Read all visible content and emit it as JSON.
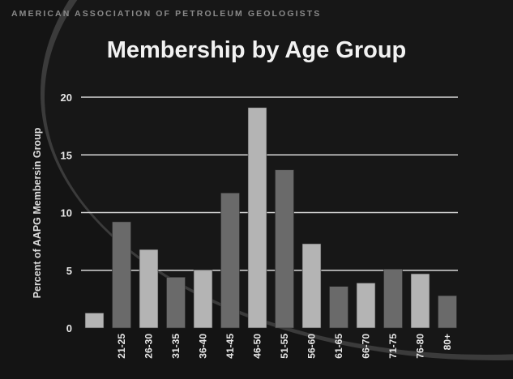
{
  "header": {
    "org": "AMERICAN ASSOCIATION OF PETROLEUM GEOLOGISTS"
  },
  "colors": {
    "background": "#151515",
    "arc": "#3a3a3a",
    "bar_dark": "#6a6a6a",
    "bar_light": "#b4b4b4",
    "grid": "#d8d8d8",
    "text": "#e6e6e6"
  },
  "chart_data": {
    "type": "bar",
    "title": "Membership by Age Group",
    "xlabel": "",
    "ylabel": "Percent of AAPG Membersin Group",
    "ylim": [
      0,
      20
    ],
    "yticks": [
      0,
      5,
      10,
      15,
      20
    ],
    "grid": true,
    "categories": [
      "",
      "21-25",
      "26-30",
      "31-35",
      "36-40",
      "41-45",
      "46-50",
      "51-55",
      "56-60",
      "61-65",
      "66-70",
      "71-75",
      "76-80",
      "80+"
    ],
    "values": [
      1.3,
      9.2,
      6.8,
      4.4,
      5.0,
      11.7,
      19.1,
      13.7,
      7.3,
      3.6,
      3.9,
      5.1,
      4.7,
      2.8
    ]
  }
}
